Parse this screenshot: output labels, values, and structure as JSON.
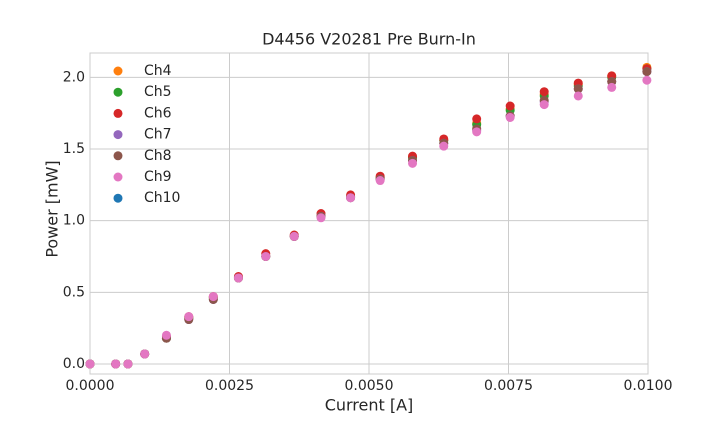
{
  "chart_data": {
    "type": "scatter",
    "title": "D4456 V20281 Pre Burn-In",
    "x_label": "Current [A]",
    "y_label": "Power [mW]",
    "x": [
      0,
      0.00046,
      0.00068,
      0.00098,
      0.00137,
      0.00177,
      0.00221,
      0.00266,
      0.00315,
      0.00366,
      0.00414,
      0.00467,
      0.0052,
      0.00578,
      0.00634,
      0.00693,
      0.00753,
      0.00814,
      0.00875,
      0.00935,
      0.00998
    ],
    "series": [
      {
        "name": "Ch4",
        "color": "#ff7f0e",
        "values": [
          0,
          0,
          0,
          0.07,
          0.18,
          0.32,
          0.46,
          0.6,
          0.75,
          0.89,
          1.03,
          1.17,
          1.3,
          1.44,
          1.56,
          1.68,
          1.78,
          1.88,
          1.95,
          2.01,
          2.07
        ]
      },
      {
        "name": "Ch5",
        "color": "#2ca02c",
        "values": [
          0,
          0,
          0,
          0.07,
          0.18,
          0.32,
          0.46,
          0.6,
          0.75,
          0.89,
          1.03,
          1.17,
          1.3,
          1.44,
          1.56,
          1.67,
          1.77,
          1.87,
          1.94,
          2.0,
          2.06
        ]
      },
      {
        "name": "Ch6",
        "color": "#d62728",
        "values": [
          0,
          0,
          0,
          0.07,
          0.19,
          0.33,
          0.47,
          0.61,
          0.77,
          0.9,
          1.05,
          1.18,
          1.31,
          1.45,
          1.57,
          1.71,
          1.8,
          1.9,
          1.96,
          2.01,
          2.06
        ]
      },
      {
        "name": "Ch7",
        "color": "#9467bd",
        "values": [
          0,
          0,
          0,
          0.07,
          0.18,
          0.31,
          0.45,
          0.6,
          0.75,
          0.89,
          1.03,
          1.16,
          1.29,
          1.42,
          1.54,
          1.63,
          1.73,
          1.83,
          1.92,
          1.97,
          2.04
        ]
      },
      {
        "name": "Ch8",
        "color": "#8c564b",
        "values": [
          0,
          0,
          0,
          0.07,
          0.18,
          0.31,
          0.45,
          0.6,
          0.75,
          0.89,
          1.03,
          1.16,
          1.29,
          1.42,
          1.54,
          1.64,
          1.73,
          1.84,
          1.92,
          1.97,
          2.04
        ]
      },
      {
        "name": "Ch9",
        "color": "#e377c2",
        "values": [
          0,
          0,
          0,
          0.07,
          0.2,
          0.33,
          0.47,
          0.6,
          0.75,
          0.89,
          1.02,
          1.16,
          1.28,
          1.4,
          1.52,
          1.62,
          1.72,
          1.81,
          1.87,
          1.93,
          1.98
        ]
      },
      {
        "name": "Ch10",
        "color": "#1f77b4",
        "values": [
          null,
          null,
          null,
          null,
          null,
          null,
          null,
          null,
          null,
          null,
          null,
          null,
          null,
          null,
          null,
          null,
          null,
          null,
          null,
          null,
          null
        ]
      }
    ],
    "xlim": [
      0,
      0.01
    ],
    "xticks": [
      {
        "value": 0,
        "label": "0.0000"
      },
      {
        "value": 0.0025,
        "label": "0.0025"
      },
      {
        "value": 0.005,
        "label": "0.0050"
      },
      {
        "value": 0.0075,
        "label": "0.0075"
      },
      {
        "value": 0.01,
        "label": "0.0100"
      }
    ],
    "ylim": [
      -0.07,
      2.17
    ],
    "yticks": [
      {
        "value": 0,
        "label": "0.0"
      },
      {
        "value": 0.5,
        "label": "0.5"
      },
      {
        "value": 1,
        "label": "1.0"
      },
      {
        "value": 1.5,
        "label": "1.5"
      },
      {
        "value": 2,
        "label": "2.0"
      }
    ],
    "grid": true,
    "legend": "upper-left"
  }
}
